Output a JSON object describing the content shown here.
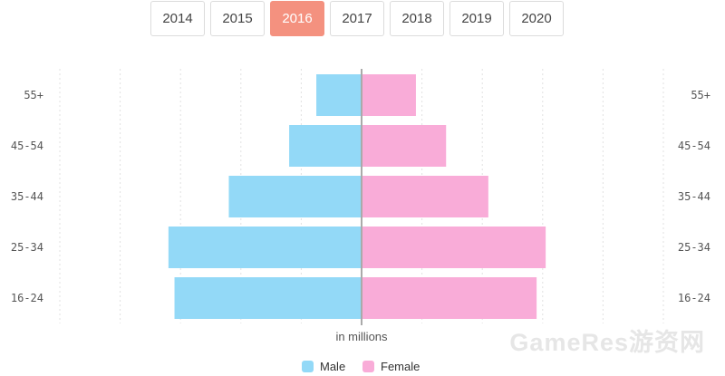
{
  "year_tabs": [
    {
      "label": "2014",
      "active": false
    },
    {
      "label": "2015",
      "active": false
    },
    {
      "label": "2016",
      "active": true
    },
    {
      "label": "2017",
      "active": false
    },
    {
      "label": "2018",
      "active": false
    },
    {
      "label": "2019",
      "active": false
    },
    {
      "label": "2020",
      "active": false
    }
  ],
  "watermark": "GameRes游资网",
  "colors": {
    "accent": "#f4917f",
    "male": "#93d9f7",
    "female": "#f9acd8",
    "center_line": "#aaaaaa",
    "grid": "#e2e2e2"
  },
  "chart_data": {
    "type": "bar",
    "orientation": "horizontal-population-pyramid",
    "title": "",
    "xlabel": "in millions",
    "ylabel": "",
    "categories": [
      "55+",
      "45-54",
      "35-44",
      "25-34",
      "16-24"
    ],
    "series": [
      {
        "name": "Male",
        "values": [
          -1.5,
          -2.4,
          -4.4,
          -6.4,
          -6.2
        ]
      },
      {
        "name": "Female",
        "values": [
          1.8,
          2.8,
          4.2,
          6.1,
          5.8
        ]
      }
    ],
    "xlim": [
      -10,
      10
    ],
    "grid": true,
    "legend_position": "bottom-center"
  }
}
